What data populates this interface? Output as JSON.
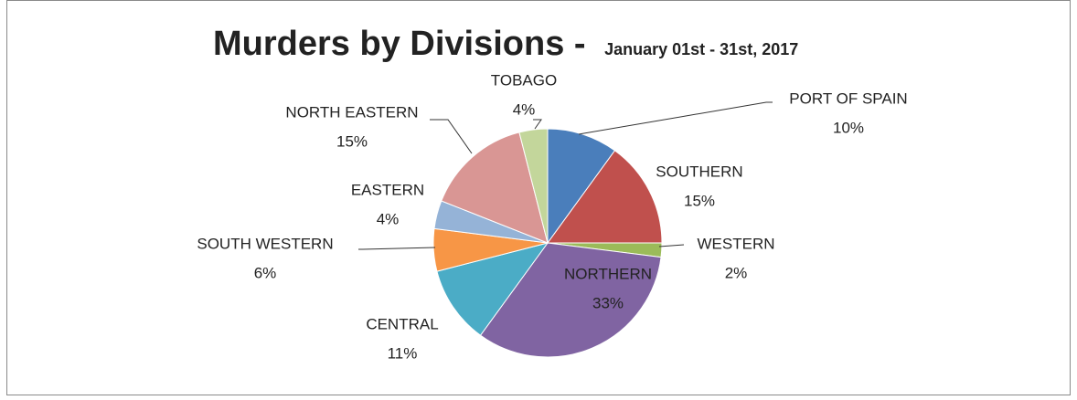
{
  "chart_data": {
    "type": "pie",
    "title": "Murders by Divisions -",
    "subtitle": "January 01st - 31st, 2017",
    "categories": [
      "PORT OF SPAIN",
      "SOUTHERN",
      "WESTERN",
      "NORTHERN",
      "CENTRAL",
      "SOUTH WESTERN",
      "EASTERN",
      "NORTH EASTERN",
      "TOBAGO"
    ],
    "values": [
      10,
      15,
      2,
      33,
      11,
      6,
      4,
      15,
      4
    ],
    "value_labels": [
      "10%",
      "15%",
      "2%",
      "33%",
      "11%",
      "6%",
      "4%",
      "15%",
      "4%"
    ],
    "colors": [
      "#4a7ebb",
      "#c0504d",
      "#9bbb59",
      "#8064a2",
      "#4bacc6",
      "#f79646",
      "#95b3d7",
      "#d99694",
      "#c3d69b"
    ]
  }
}
